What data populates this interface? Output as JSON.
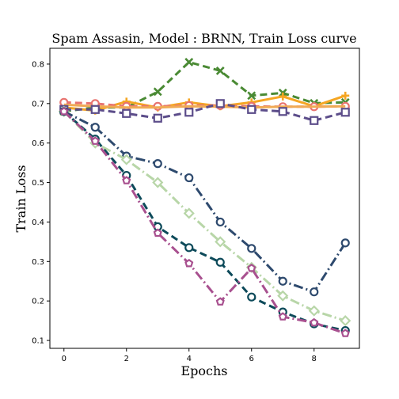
{
  "chart_data": {
    "type": "line",
    "title": "Spam Assasin, Model : BRNN, Train Loss curve",
    "xlabel": "Epochs",
    "ylabel": "Train Loss",
    "xlim": [
      -0.45,
      9.45
    ],
    "ylim": [
      0.08,
      0.84
    ],
    "xticks": [
      0,
      2,
      4,
      6,
      8
    ],
    "yticks": [
      0.1,
      0.2,
      0.3,
      0.4,
      0.5,
      0.6,
      0.7,
      0.8
    ],
    "x": [
      0,
      1,
      2,
      3,
      4,
      5,
      6,
      7,
      8,
      9
    ],
    "series": [
      {
        "values": [
          0.68,
          0.69,
          0.69,
          0.73,
          0.805,
          0.783,
          0.72,
          0.727,
          0.701,
          0.703
        ],
        "color": "#4a8a34",
        "dash": "9,5",
        "marker": "x"
      },
      {
        "values": [
          0.69,
          0.682,
          0.705,
          0.69,
          0.703,
          0.693,
          0.703,
          0.718,
          0.693,
          0.72
        ],
        "color": "#f5a623",
        "dash": "",
        "marker": "plus"
      },
      {
        "values": [
          0.703,
          0.7,
          0.693,
          0.693,
          0.695,
          0.695,
          0.693,
          0.692,
          0.692,
          0.693
        ],
        "color": "#e8736f",
        "dash": "9,5",
        "marker": "circle"
      },
      {
        "values": [
          0.697,
          0.693,
          0.69,
          0.69,
          0.693,
          0.692,
          0.69,
          0.692,
          0.692,
          0.693
        ],
        "color": "#f0aa55",
        "dash": "",
        "marker": "none"
      },
      {
        "values": [
          0.685,
          0.685,
          0.675,
          0.663,
          0.678,
          0.7,
          0.685,
          0.68,
          0.657,
          0.678
        ],
        "color": "#5c4d8a",
        "dash": "9,5",
        "marker": "square"
      },
      {
        "values": [
          0.68,
          0.64,
          0.567,
          0.548,
          0.512,
          0.4,
          0.333,
          0.25,
          0.223,
          0.347
        ],
        "color": "#2e4a6e",
        "dash": "12,4,2,4",
        "marker": "circle"
      },
      {
        "values": [
          0.68,
          0.6,
          0.558,
          0.5,
          0.422,
          0.35,
          0.285,
          0.213,
          0.175,
          0.15
        ],
        "color": "#b8d6a8",
        "dash": "12,4,2,4",
        "marker": "diamond"
      },
      {
        "values": [
          0.68,
          0.61,
          0.518,
          0.388,
          0.335,
          0.298,
          0.21,
          0.172,
          0.142,
          0.125
        ],
        "color": "#0d4a5a",
        "dash": "9,5",
        "marker": "circle"
      },
      {
        "values": [
          0.68,
          0.605,
          0.505,
          0.372,
          0.295,
          0.198,
          0.283,
          0.16,
          0.145,
          0.118
        ],
        "color": "#a8508f",
        "dash": "12,4,2,4",
        "marker": "pentagon"
      }
    ]
  }
}
